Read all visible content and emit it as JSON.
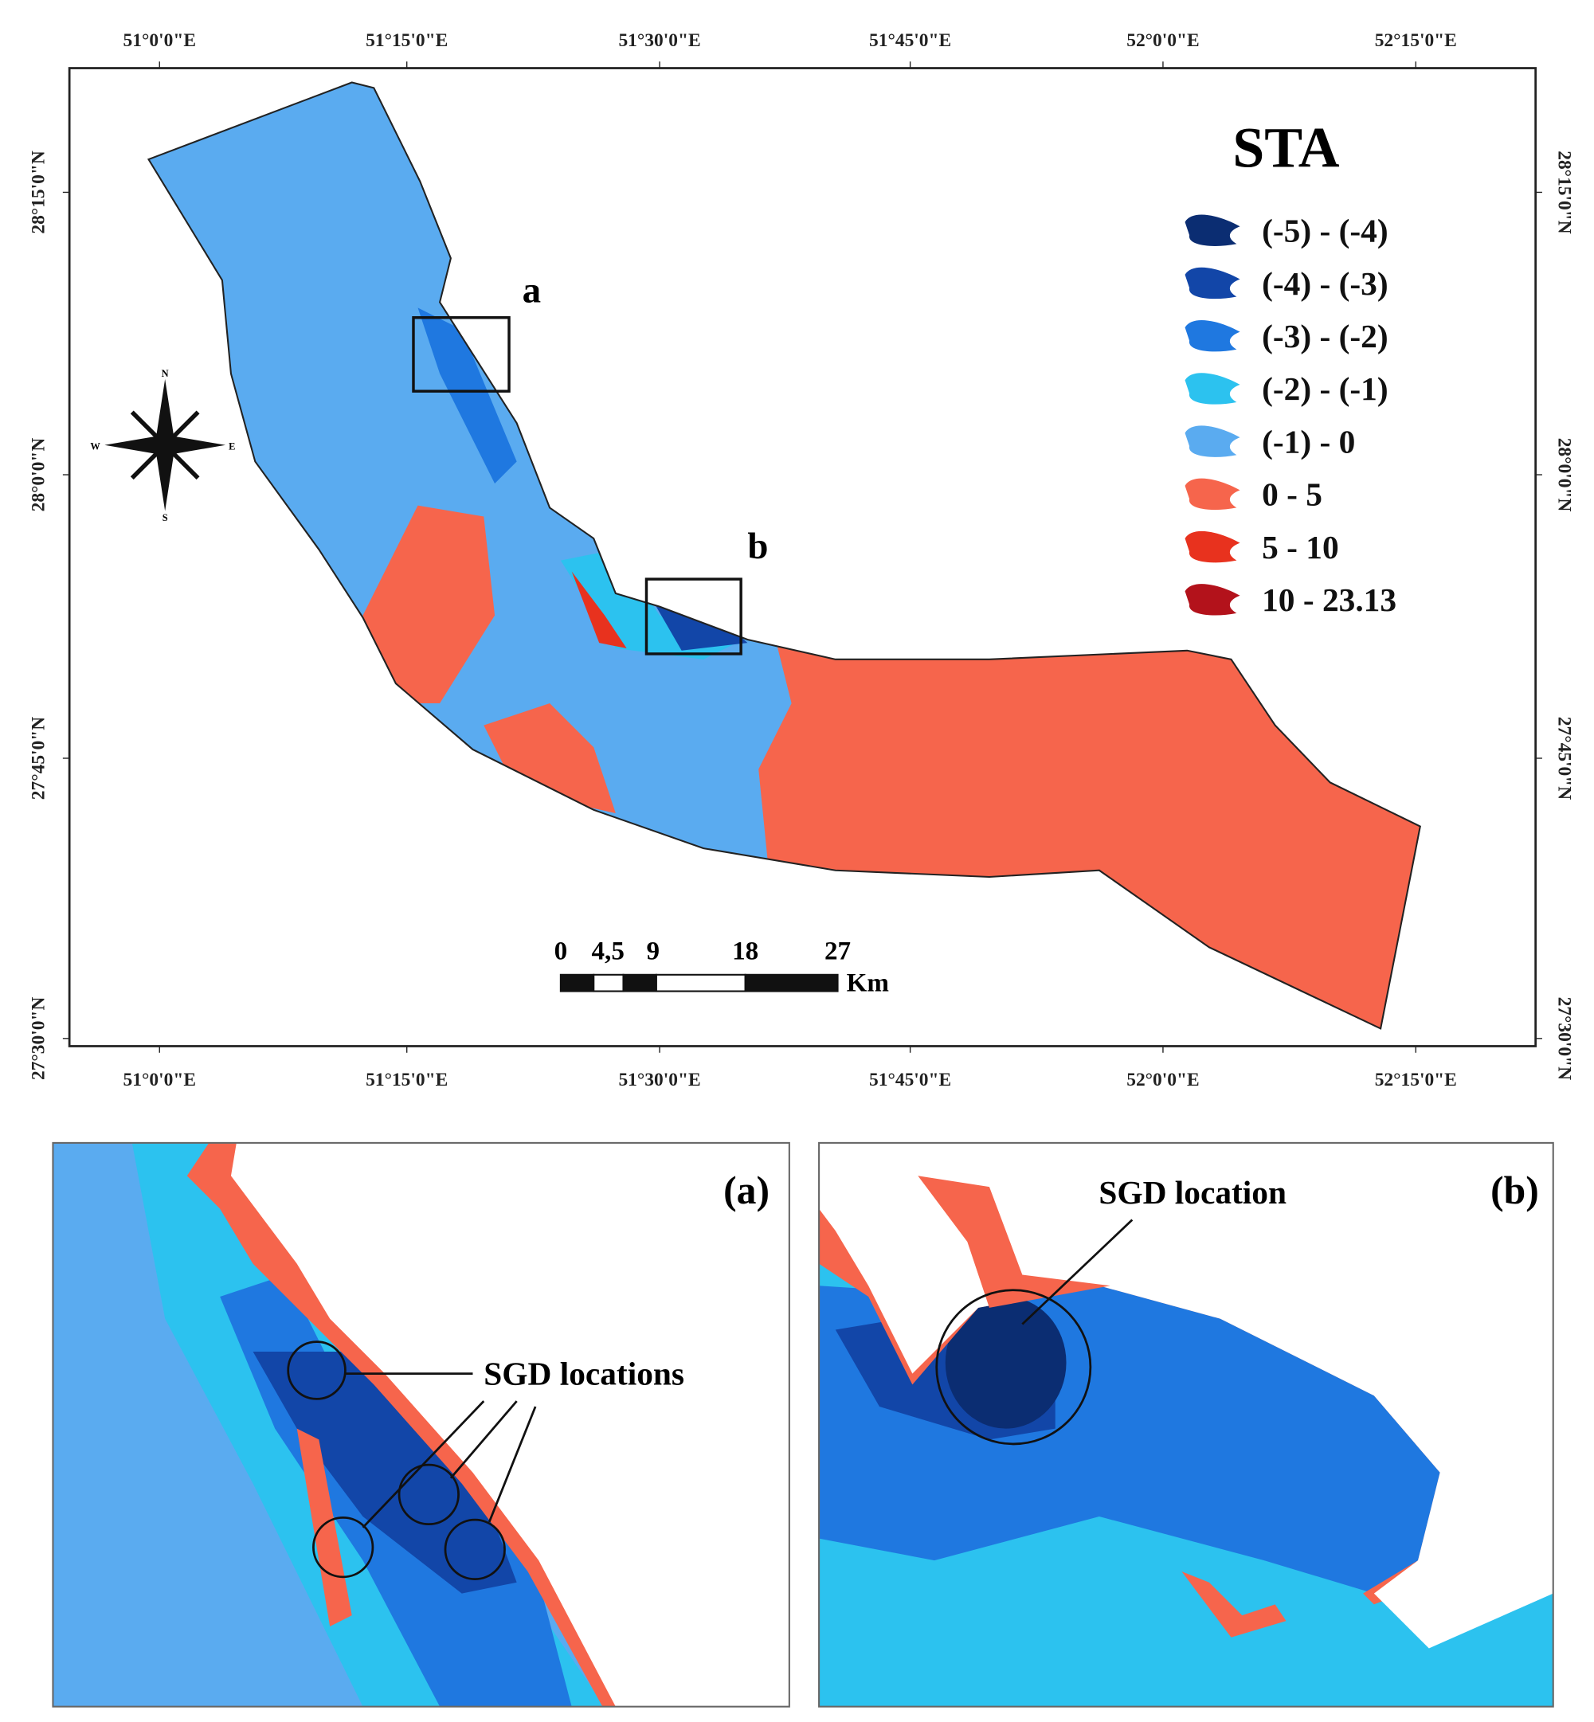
{
  "map": {
    "longitude_labels": [
      "51°0'0\"E",
      "51°15'0\"E",
      "51°30'0\"E",
      "51°45'0\"E",
      "52°0'0\"E",
      "52°15'0\"E"
    ],
    "latitude_labels": [
      "28°15'0\"N",
      "28°0'0\"N",
      "27°45'0\"N",
      "27°30'0\"N"
    ],
    "legend": {
      "title": "STA",
      "items": [
        {
          "label": "(-5) - (-4)",
          "color": "#0b2d72"
        },
        {
          "label": "(-4) - (-3)",
          "color": "#1246a8"
        },
        {
          "label": "(-3) - (-2)",
          "color": "#1f78e0"
        },
        {
          "label": "(-2) - (-1)",
          "color": "#2cc2ef"
        },
        {
          "label": "(-1) - 0",
          "color": "#5aabf0"
        },
        {
          "label": "0 - 5",
          "color": "#f6654c"
        },
        {
          "label": "5 - 10",
          "color": "#e8321e"
        },
        {
          "label": "10 - 23.13",
          "color": "#b3121b"
        }
      ]
    },
    "box_labels": [
      "a",
      "b"
    ],
    "compass": [
      "N",
      "E",
      "S",
      "W"
    ],
    "scale_bar": {
      "labels": [
        "0",
        "4,5",
        "9",
        "18",
        "27"
      ],
      "unit": "Km"
    }
  },
  "insets": [
    {
      "label": "(a)",
      "annotation": "SGD locations"
    },
    {
      "label": "(b)",
      "annotation": "SGD location"
    }
  ]
}
